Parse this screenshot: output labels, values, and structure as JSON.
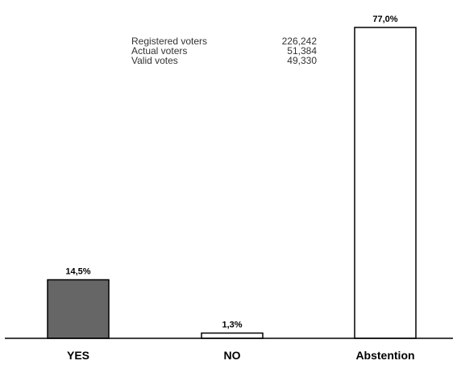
{
  "chart_data": {
    "type": "bar",
    "title": "",
    "categories": [
      "YES",
      "NO",
      "Abstention"
    ],
    "values": [
      14.5,
      1.3,
      77.0
    ],
    "value_labels": [
      "14,5%",
      "1,3%",
      "77,0%"
    ],
    "ylim": [
      0,
      80
    ],
    "grid": false,
    "bar_fills": [
      "#666666",
      "#ffffff",
      "#ffffff"
    ],
    "bar_stroke": "#000000",
    "xlabel": "",
    "ylabel": ""
  },
  "stats": [
    {
      "label": "Registered voters",
      "value": "226,242"
    },
    {
      "label": "Actual voters",
      "value": "51,384"
    },
    {
      "label": "Valid votes",
      "value": "49,330"
    }
  ]
}
